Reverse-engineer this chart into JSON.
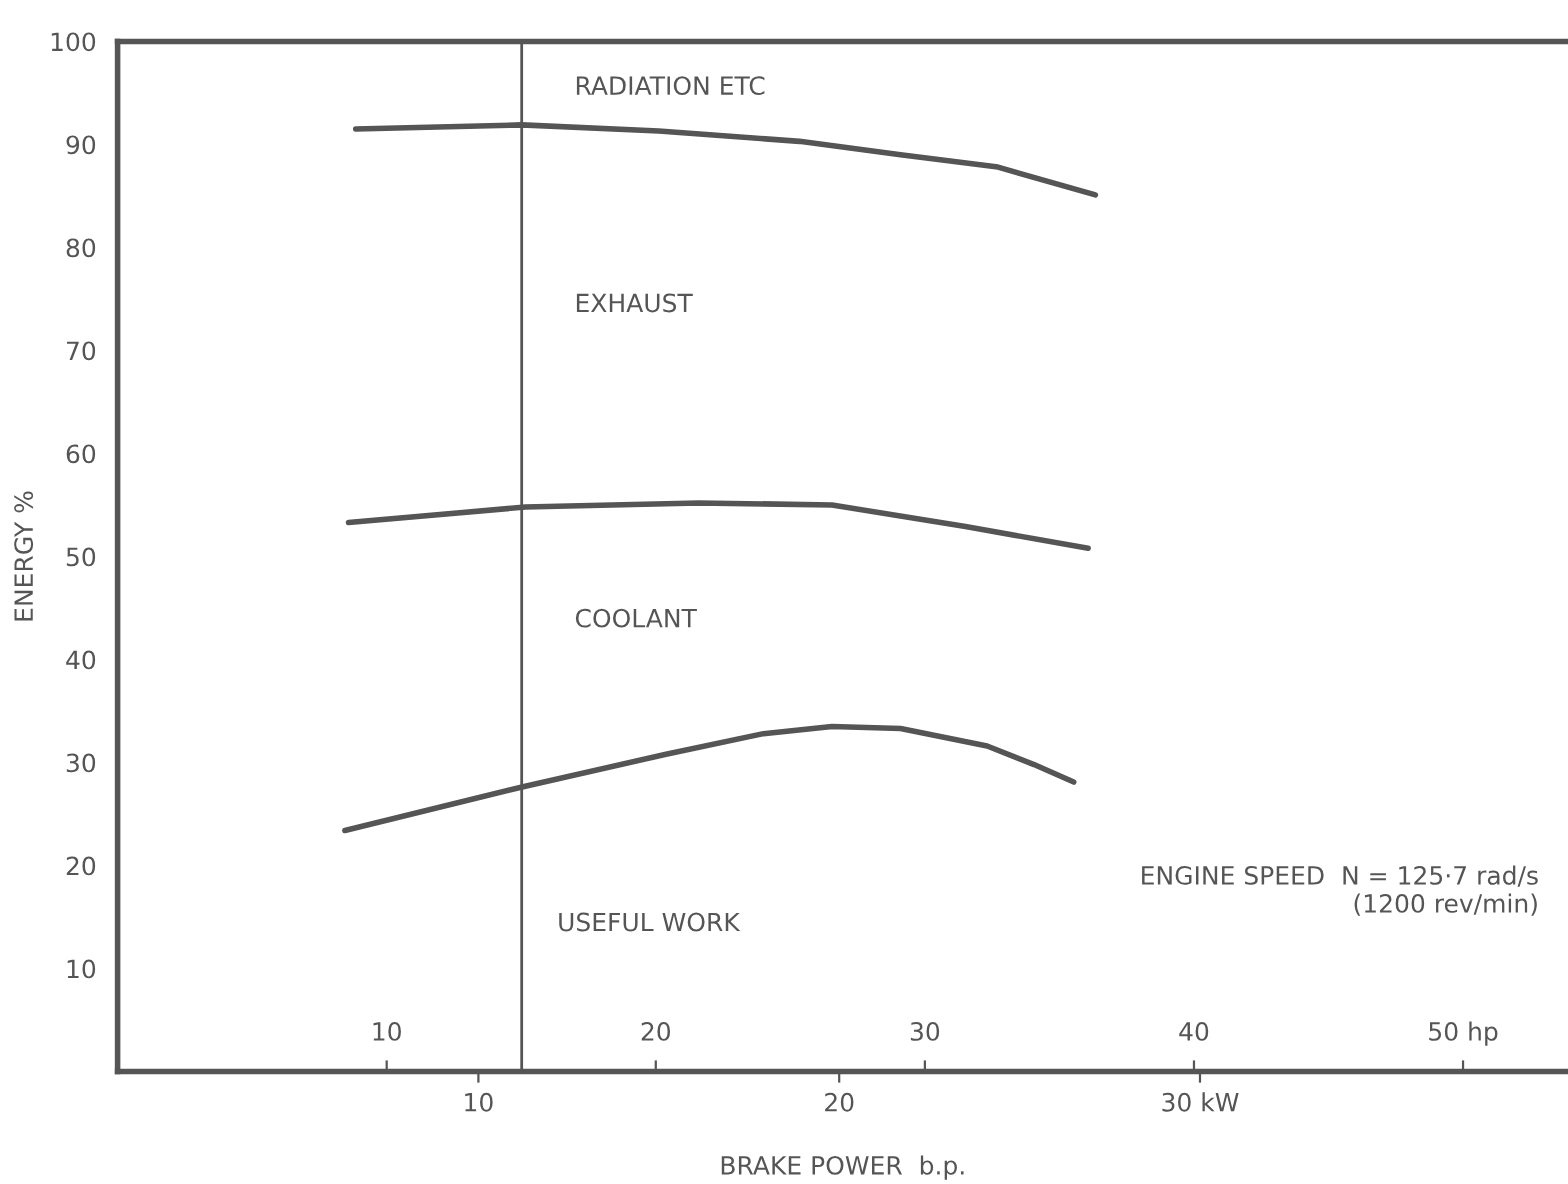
{
  "chart_data": {
    "type": "line",
    "xlabel": "BRAKE POWER  b.p.",
    "ylabel": "ENERGY %",
    "xlim": [
      0,
      40.2
    ],
    "xticks": [
      10,
      20,
      {
        "value": 30,
        "label": "30 kW"
      }
    ],
    "x2lim": [
      0,
      53.9
    ],
    "x2ticks": [
      10,
      20,
      30,
      40,
      {
        "value": 50,
        "label": "50 hp"
      }
    ],
    "ylim": [
      0,
      100
    ],
    "yticks": [
      10,
      20,
      30,
      40,
      50,
      60,
      70,
      80,
      90,
      100
    ],
    "series": [
      {
        "color": "#555555",
        "x": [
          6.6,
          11.2,
          15.0,
          18.9,
          21.7,
          24.4,
          27.1
        ],
        "values": [
          91.5,
          91.9,
          91.3,
          90.3,
          89.0,
          87.8,
          85.1
        ]
      },
      {
        "color": "#555555",
        "x": [
          6.4,
          11.3,
          16.1,
          19.8,
          23.5,
          26.9
        ],
        "values": [
          53.3,
          54.8,
          55.2,
          55.0,
          52.9,
          50.8
        ]
      },
      {
        "color": "#555555",
        "x": [
          6.3,
          11.3,
          15.2,
          17.9,
          19.8,
          21.7,
          24.1,
          25.4,
          26.5
        ],
        "values": [
          23.4,
          27.7,
          30.8,
          32.8,
          33.5,
          33.3,
          31.6,
          29.8,
          28.1
        ]
      }
    ],
    "ref_lines": [
      {
        "axis": "x",
        "value": 11.2,
        "color": "#555555"
      }
    ],
    "annotations": [
      "RADIATION ETC",
      "EXHAUST",
      "COOLANT",
      "USEFUL WORK",
      "ENGINE SPEED  N = 125·7 rad/s\n(1200 rev/min)"
    ],
    "grid": false,
    "legend": false
  }
}
